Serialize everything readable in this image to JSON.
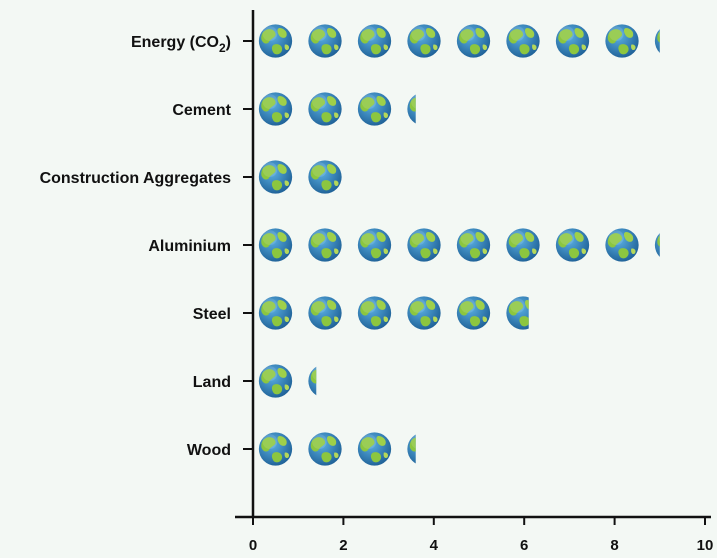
{
  "chart_data": {
    "type": "bar",
    "categories": [
      {
        "label": "Energy (CO",
        "sub": "2",
        "tail": ")"
      },
      {
        "label": "Cement",
        "sub": "",
        "tail": ""
      },
      {
        "label": "Construction Aggregates",
        "sub": "",
        "tail": ""
      },
      {
        "label": "Aluminium",
        "sub": "",
        "tail": ""
      },
      {
        "label": "Steel",
        "sub": "",
        "tail": ""
      },
      {
        "label": "Land",
        "sub": "",
        "tail": ""
      },
      {
        "label": "Wood",
        "sub": "",
        "tail": ""
      }
    ],
    "values": [
      9.0,
      3.6,
      2.0,
      9.0,
      6.1,
      1.4,
      3.6
    ],
    "xlim": [
      0,
      10
    ],
    "xticks": [
      "0",
      "2",
      "4",
      "6",
      "8",
      "10"
    ],
    "marker_icon": "earth-globe-icon",
    "marker_unit": 1,
    "colors": {
      "ocean": "#2f86bd",
      "land": "#8cc63f",
      "axis": "#111111",
      "background": "#f3f8f4"
    }
  }
}
